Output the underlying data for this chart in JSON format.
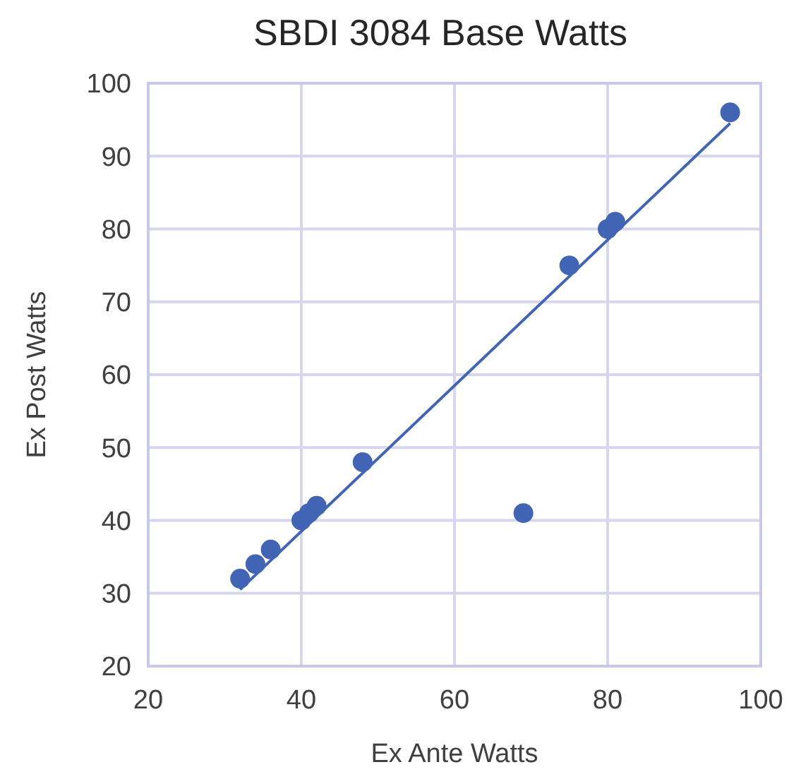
{
  "chart_data": {
    "type": "scatter",
    "title": "SBDI 3084 Base Watts",
    "xlabel": "Ex Ante Watts",
    "ylabel": "Ex Post Watts",
    "xlim": [
      20,
      100
    ],
    "xticks": [
      20,
      40,
      60,
      80,
      100
    ],
    "ylim": [
      20,
      100
    ],
    "yticks": [
      20,
      30,
      40,
      50,
      60,
      70,
      80,
      90,
      100
    ],
    "grid": true,
    "series": [
      {
        "marker": "circle",
        "color": "#4264b4",
        "x": [
          32,
          34,
          36,
          40,
          41,
          42,
          48,
          69,
          75,
          80,
          81,
          96
        ],
        "values": [
          32,
          34,
          36,
          40,
          41,
          42,
          48,
          41,
          75,
          80,
          81,
          96
        ]
      },
      {
        "type": "line",
        "color": "#4264b4",
        "x": [
          32,
          96
        ],
        "values": [
          30.5,
          94.5
        ]
      }
    ]
  }
}
